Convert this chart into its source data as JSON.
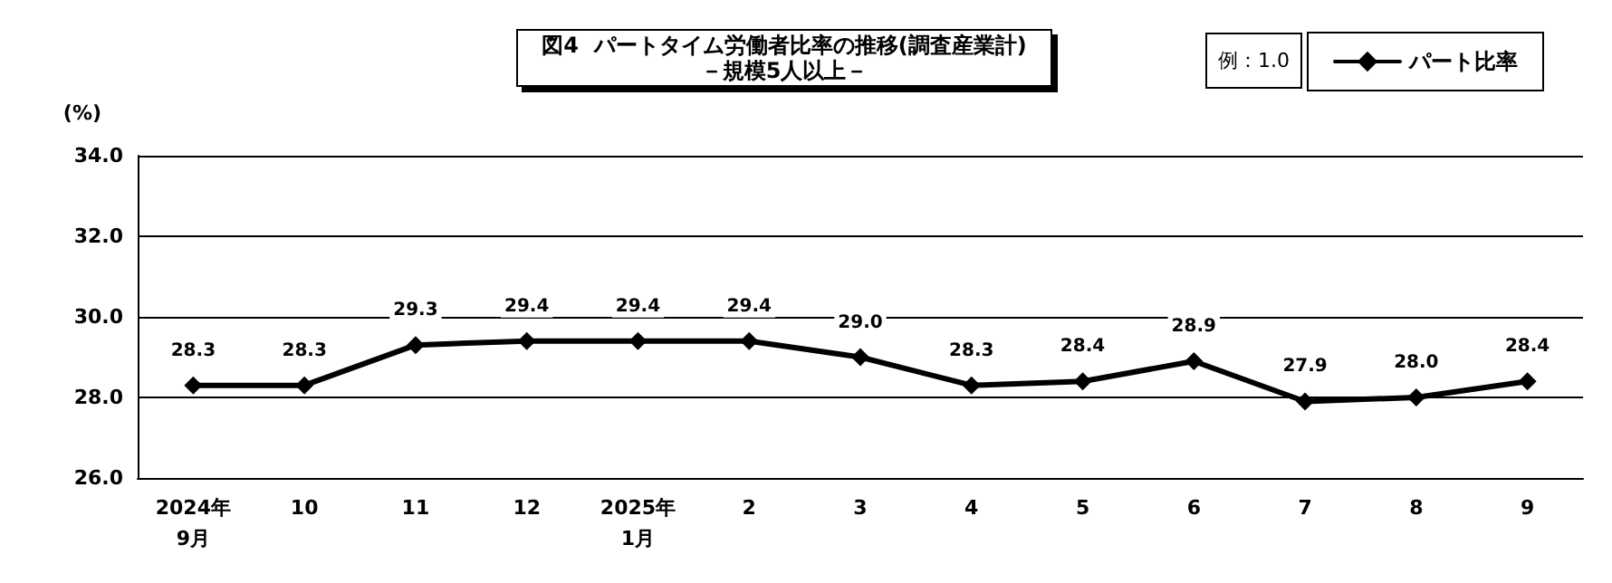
{
  "chart_data": {
    "type": "line",
    "title": "図4  パートタイム労働者比率の推移(調査産業計)",
    "subtitle": "－規模5人以上－",
    "ylabel": "(%)",
    "annotations": [
      "例：1.0"
    ],
    "categories": [
      "2024年\n9月",
      "10",
      "11",
      "12",
      "2025年\n1月",
      "2",
      "3",
      "4",
      "5",
      "6",
      "7",
      "8",
      "9"
    ],
    "series": [
      {
        "name": "パート比率",
        "color": "#000000",
        "values": [
          28.3,
          28.3,
          29.3,
          29.4,
          29.4,
          29.4,
          29.0,
          28.3,
          28.4,
          28.9,
          27.9,
          28.0,
          28.4
        ],
        "value_labels": [
          "28.3",
          "28.3",
          "29.3",
          "29.4",
          "29.4",
          "29.4",
          "29.0",
          "28.3",
          "28.4",
          "28.9",
          "27.9",
          "28.0",
          "28.4"
        ]
      }
    ],
    "ylim": [
      26,
      34
    ],
    "yticks": [
      {
        "value": 26,
        "label": "26.0"
      },
      {
        "value": 28,
        "label": "28.0"
      },
      {
        "value": 30,
        "label": "30.0"
      },
      {
        "value": 32,
        "label": "32.0"
      },
      {
        "value": 34,
        "label": "34.0"
      }
    ],
    "grid": "y",
    "legend": "top right",
    "marker": "diamond",
    "line_style": "solid"
  }
}
